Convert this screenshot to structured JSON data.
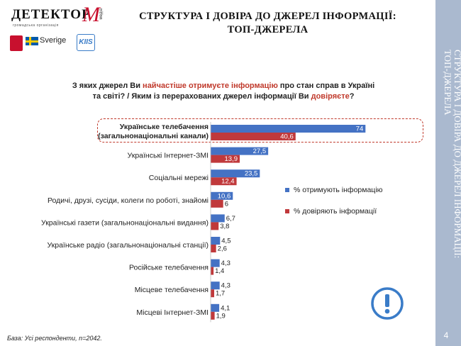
{
  "logo": {
    "title": "ДЕТЕКТОР",
    "letter": "M",
    "media": "медіа",
    "subtitle": "громадська організація",
    "sverige": "Sverige",
    "kis": "KIIS"
  },
  "header": {
    "title_line1": "СТРУКТУРА І ДОВІРА ДО ДЖЕРЕЛ ІНФОРМАЦІЇ:",
    "title_line2": "ТОП-ДЖЕРЕЛА"
  },
  "sidebar": {
    "text": "СТРУКТУРА І ДОВІРА ДО ДЖЕРЕЛ ІНФОРМАЦІЇ:\nТОП-ДЖЕРЕЛА",
    "page_number": "4"
  },
  "question": {
    "part1": "З яких джерел Ви ",
    "highlight1": "найчастіше отримуєте інформацію",
    "part2": " про стан справ в Україні та світі? / Яким із перерахованих джерел інформації Ви ",
    "highlight2": "довіряєте",
    "part3": "?"
  },
  "footnote": "База: Усі респонденти,  n=2042.",
  "colors": {
    "receive": "#4472c4",
    "trust": "#c0393b",
    "accent": "#c0392b",
    "sidebar": "#aab9cf",
    "warning": "#3a7cc8"
  },
  "warning_icon": "exclamation-circle-icon",
  "chart_data": {
    "type": "bar",
    "orientation": "horizontal",
    "categories": [
      "Українське телебачення (загальнонаціональні канали)",
      "Українські Інтернет-ЗМІ",
      "Соціальні мережі",
      "Родичі, друзі, сусіди, колеги по роботі, знайомі",
      "Українські газети (загальнонаціональні  видання)",
      "Українське радіо (загальнонаціональні  станції)",
      "Російське телебачення",
      "Місцеве телебачення",
      "Місцеві Інтернет-ЗМІ"
    ],
    "category_lines": [
      [
        "Українське телебачення",
        "(загальнонаціональні канали)"
      ],
      [
        "Українські Інтернет-ЗМІ"
      ],
      [
        "Соціальні мережі"
      ],
      [
        "Родичі, друзі, сусіди, колеги по роботі, знайомі"
      ],
      [
        "Українські газети (загальнонаціональні  видання)"
      ],
      [
        "Українське радіо (загальнонаціональні  станції)"
      ],
      [
        "Російське телебачення"
      ],
      [
        "Місцеве телебачення"
      ],
      [
        "Місцеві Інтернет-ЗМІ"
      ]
    ],
    "series": [
      {
        "name": "% отримують інформацію",
        "values": [
          74,
          27.5,
          23.5,
          10.6,
          6.7,
          4.5,
          4.3,
          4.3,
          4.1
        ],
        "labels": [
          "74",
          "27,5",
          "23,5",
          "10,6",
          "6,7",
          "4,5",
          "4,3",
          "4,3",
          "4,1"
        ]
      },
      {
        "name": "% довіряють інформації",
        "values": [
          40.6,
          13.9,
          12.4,
          6,
          3.8,
          2.6,
          1.4,
          1.7,
          1.9
        ],
        "labels": [
          "40,6",
          "13,9",
          "12,4",
          "6",
          "3,8",
          "2,6",
          "1,4",
          "1,7",
          "1,9"
        ]
      }
    ],
    "highlighted_category": 0,
    "xlim": [
      0,
      100
    ],
    "grid": false,
    "legend": "right"
  }
}
